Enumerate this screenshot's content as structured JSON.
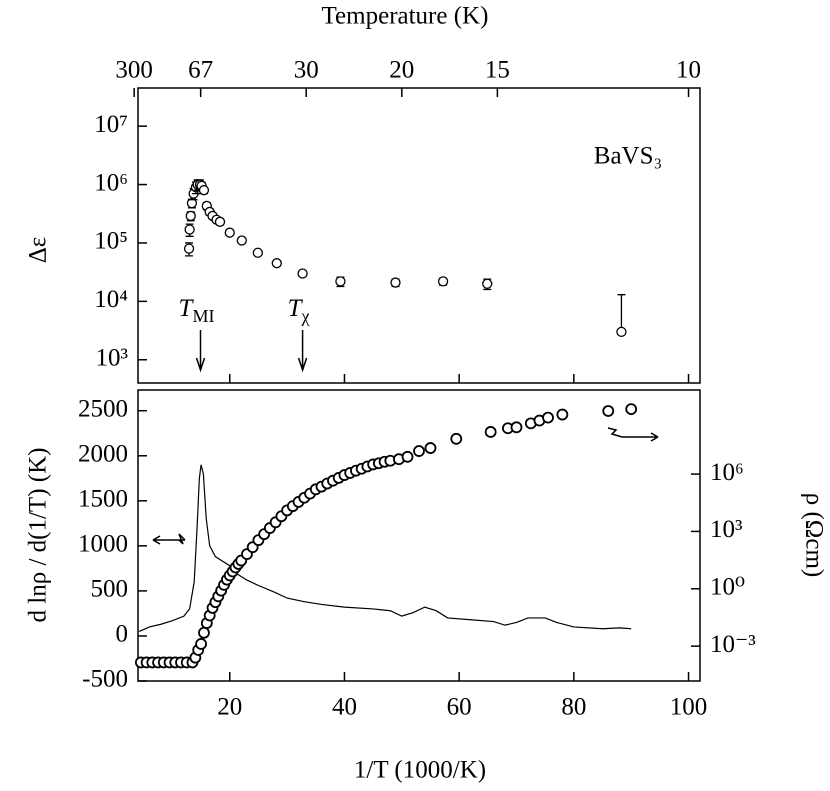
{
  "chart_data": [
    {
      "type": "scatter",
      "x2label": "Temperature (K)",
      "x2ticks": [
        300,
        67,
        30,
        20,
        15,
        10
      ],
      "ylabel": "Δε",
      "ylog": true,
      "xlim": [
        4,
        102
      ],
      "xticks": [
        20,
        40,
        60,
        80,
        100
      ],
      "ylim": [
        400,
        45000000
      ],
      "yticks": [
        {
          "value": 1000,
          "label": "10³"
        },
        {
          "value": 10000,
          "label": "10⁴"
        },
        {
          "value": 100000,
          "label": "10⁵"
        },
        {
          "value": 1000000,
          "label": "10⁶"
        },
        {
          "value": 10000000,
          "label": "10⁷"
        }
      ],
      "annotation": "BaVS₃",
      "markers": [
        {
          "text": "T",
          "sub": "MI",
          "x": 14.9
        },
        {
          "text": "T",
          "sub": "χ",
          "x": 32.7
        }
      ],
      "x": [
        12.9,
        13.0,
        13.2,
        13.4,
        13.7,
        14.1,
        14.4,
        14.8,
        15.1,
        15.5,
        16.0,
        16.5,
        17.0,
        17.7,
        18.3,
        20.0,
        22.1,
        24.9,
        28.2,
        32.7,
        39.3,
        48.9,
        57.2,
        64.9,
        88.3
      ],
      "values": [
        80000,
        170000,
        290000,
        480000,
        700000,
        900000,
        1000000,
        1000000,
        950000,
        800000,
        430000,
        340000,
        290000,
        250000,
        230000,
        150000,
        110000,
        68000,
        45000,
        30000,
        22000,
        21000,
        22000,
        20000,
        3000
      ],
      "errors": [
        20000,
        40000,
        50000,
        80000,
        150000,
        200000,
        200000,
        200000,
        150000,
        100000,
        60000,
        40000,
        30000,
        25000,
        20000,
        15000,
        10000,
        6000,
        4000,
        3000,
        4000,
        3000,
        3000,
        4000,
        10000
      ],
      "color": "#000000"
    },
    {
      "type": "combo",
      "xlabel": "1/T (1000/K)",
      "ylabel": "d lnρ / d(1/T) (K)",
      "y2label": "ρ (Ωcm)",
      "xlim": [
        4,
        102
      ],
      "xticks": [
        20,
        40,
        60,
        80,
        100
      ],
      "ylim": [
        -500,
        2730
      ],
      "yticks": [
        -500,
        0,
        500,
        1000,
        1500,
        2000,
        2500
      ],
      "y2log": true,
      "y2lim": [
        1.5e-05,
        25000000000
      ],
      "y2ticks": [
        {
          "value": 0.001,
          "label": "10⁻³"
        },
        {
          "value": 1,
          "label": "10⁰"
        },
        {
          "value": 1000,
          "label": "10³"
        },
        {
          "value": 1000000,
          "label": "10⁶"
        }
      ],
      "line": {
        "color": "#000000",
        "x": [
          4.2,
          6,
          8,
          10,
          12,
          13,
          13.8,
          14.3,
          14.7,
          15,
          15.4,
          15.9,
          16.5,
          17.5,
          19,
          20,
          21,
          23,
          25,
          28,
          30,
          33,
          36,
          40,
          45,
          48,
          50,
          52,
          54,
          56,
          58,
          62,
          66,
          68,
          70,
          72,
          75,
          77,
          80,
          85,
          88,
          90
        ],
        "values": [
          50,
          100,
          130,
          170,
          220,
          300,
          600,
          1200,
          1750,
          1900,
          1800,
          1300,
          1000,
          880,
          820,
          780,
          700,
          620,
          560,
          480,
          420,
          380,
          350,
          320,
          300,
          280,
          220,
          260,
          320,
          280,
          200,
          180,
          160,
          120,
          150,
          200,
          200,
          150,
          100,
          80,
          90,
          80
        ]
      },
      "scatter": {
        "axis": "y2",
        "color": "#000000",
        "x": [
          4.5,
          5.5,
          6.5,
          7.5,
          8.5,
          9.5,
          10.5,
          11.5,
          12.5,
          13.5,
          14,
          14.5,
          15,
          15.5,
          16,
          16.5,
          17,
          17.5,
          18,
          18.5,
          19,
          19.5,
          20,
          20.5,
          21,
          21.5,
          22,
          23,
          24,
          25,
          26,
          27,
          28,
          29,
          30,
          31,
          32,
          33,
          34,
          35,
          36,
          37,
          38,
          39,
          40,
          41,
          42,
          43,
          44,
          45,
          46,
          47,
          48,
          49.5,
          51,
          53,
          55,
          59.5,
          65.5,
          68.5,
          70,
          72.5,
          74,
          75.5,
          78,
          86,
          90
        ],
        "values": [
          0.00014,
          0.00014,
          0.00014,
          0.00014,
          0.00014,
          0.00014,
          0.00014,
          0.00014,
          0.00014,
          0.00014,
          0.00025,
          0.00063,
          0.0013,
          0.005,
          0.016,
          0.04,
          0.1,
          0.2,
          0.4,
          0.8,
          1.6,
          3,
          5,
          8,
          13,
          20,
          30,
          65,
          150,
          350,
          720,
          1500,
          3000,
          6200,
          12600,
          21000,
          35000,
          58000,
          95000,
          160000,
          220000,
          320000,
          450000,
          630000,
          890000,
          1150000,
          1500000,
          1900000,
          2500000,
          3200000,
          3700000,
          4400000,
          5000000,
          6000000,
          8000000,
          16000000,
          23000000,
          70000000,
          160000000,
          250000000,
          280000000,
          450000000,
          630000000,
          900000000,
          1300000000,
          2000000000,
          2500000000
        ]
      }
    }
  ]
}
